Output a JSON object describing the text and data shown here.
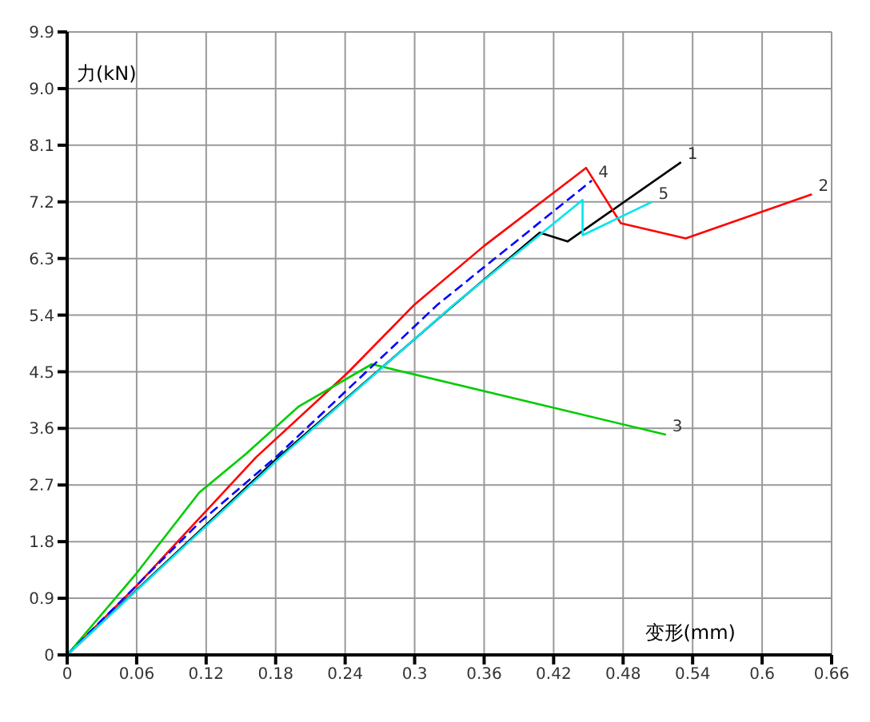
{
  "chart_data": {
    "type": "line",
    "xlabel": "变形(mm)",
    "ylabel": "力(kN)",
    "xlim": [
      0,
      0.66
    ],
    "ylim": [
      0,
      9.9
    ],
    "xticks": [
      0,
      0.06,
      0.12,
      0.18,
      0.24,
      0.3,
      0.36,
      0.42,
      0.48,
      0.54,
      0.6,
      0.66
    ],
    "yticks": [
      0,
      0.9,
      1.8,
      2.7,
      3.6,
      4.5,
      5.4,
      6.3,
      7.2,
      8.1,
      {
        "value": 9,
        "label": "9.0"
      },
      9.9
    ],
    "grid": true,
    "marker": "none",
    "series": [
      {
        "name": "1",
        "color": "#000000",
        "x": [
          0,
          0.18,
          0.33,
          0.408,
          0.432,
          0.53
        ],
        "values": [
          0,
          3.1,
          5.5,
          6.71,
          6.57,
          7.83
        ]
      },
      {
        "name": "2",
        "color": "#ff0000",
        "x": [
          0,
          0.06,
          0.163,
          0.242,
          0.3,
          0.36,
          0.448,
          0.478,
          0.534,
          0.643
        ],
        "values": [
          0,
          1.1,
          3.14,
          4.48,
          5.57,
          6.5,
          7.74,
          6.86,
          6.62,
          7.32
        ]
      },
      {
        "name": "3",
        "color": "#00cc00",
        "x": [
          0,
          0.06,
          0.114,
          0.154,
          0.2,
          0.263,
          0.517
        ],
        "values": [
          0,
          1.3,
          2.58,
          3.19,
          3.95,
          4.62,
          3.5
        ]
      },
      {
        "name": "4",
        "color": "#0000ff",
        "line_style": "dashed",
        "x": [
          0,
          0.114,
          0.18,
          0.32,
          0.453
        ],
        "values": [
          0,
          2.1,
          3.14,
          5.57,
          7.54
        ]
      },
      {
        "name": "5",
        "color": "#00e5ee",
        "x": [
          0,
          0.184,
          0.334,
          0.445,
          0.445,
          0.505
        ],
        "values": [
          0,
          3.14,
          5.57,
          7.23,
          6.67,
          7.2
        ]
      }
    ]
  }
}
